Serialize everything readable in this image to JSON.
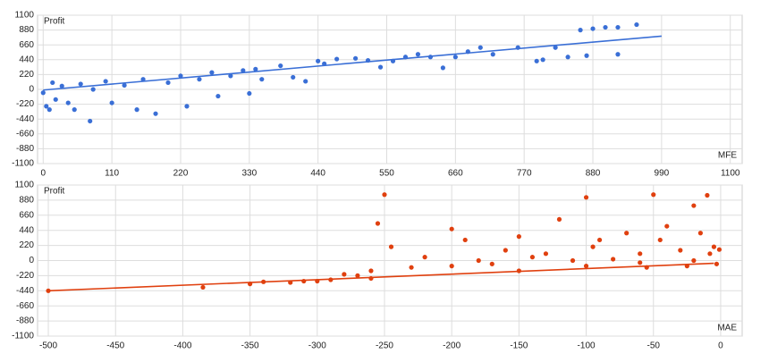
{
  "chart_data": [
    {
      "type": "scatter",
      "y_label": "Profit",
      "x_label": "MFE",
      "grid": true,
      "xlim": [
        -9,
        1119
      ],
      "ylim": [
        -1100,
        1100
      ],
      "xticks": [
        0,
        110,
        220,
        330,
        440,
        550,
        660,
        770,
        880,
        990,
        1100
      ],
      "yticks": [
        -1100,
        -880,
        -660,
        -440,
        -220,
        0,
        220,
        440,
        660,
        880,
        1100
      ],
      "series": [
        {
          "color": "#3a6fd6",
          "x": [
            0,
            5,
            10,
            15,
            20,
            30,
            40,
            50,
            60,
            75,
            80,
            100,
            110,
            130,
            150,
            160,
            180,
            200,
            220,
            230,
            250,
            270,
            280,
            300,
            320,
            330,
            340,
            350,
            380,
            400,
            420,
            440,
            450,
            470,
            500,
            520,
            540,
            560,
            580,
            600,
            620,
            640,
            660,
            680,
            700,
            720,
            760,
            790,
            800,
            820,
            840,
            860,
            880,
            900,
            920,
            950,
            870,
            920
          ],
          "y": [
            -50,
            -250,
            -300,
            100,
            -150,
            50,
            -200,
            -300,
            80,
            -470,
            0,
            120,
            -200,
            60,
            -300,
            150,
            -360,
            100,
            200,
            -250,
            150,
            250,
            -100,
            200,
            280,
            -60,
            300,
            150,
            350,
            180,
            120,
            420,
            380,
            450,
            460,
            430,
            330,
            420,
            480,
            520,
            480,
            320,
            480,
            560,
            620,
            520,
            620,
            420,
            440,
            620,
            480,
            880,
            900,
            920,
            920,
            960,
            500,
            520
          ]
        }
      ],
      "trendline": {
        "x": [
          0,
          990
        ],
        "y": [
          -10,
          790
        ]
      }
    },
    {
      "type": "scatter",
      "y_label": "Profit",
      "x_label": "MAE",
      "grid": true,
      "xlim": [
        -508,
        16
      ],
      "ylim": [
        -1100,
        1100
      ],
      "xticks": [
        -500,
        -450,
        -400,
        -350,
        -300,
        -250,
        -200,
        -150,
        -100,
        -50,
        0
      ],
      "yticks": [
        -1100,
        -880,
        -660,
        -440,
        -220,
        0,
        220,
        440,
        660,
        880,
        1100
      ],
      "series": [
        {
          "color": "#e0400f",
          "x": [
            -500,
            -385,
            -350,
            -340,
            -320,
            -300,
            -290,
            -280,
            -270,
            -260,
            -255,
            -250,
            -245,
            -230,
            -220,
            -200,
            -200,
            -190,
            -180,
            -170,
            -160,
            -150,
            -140,
            -130,
            -120,
            -110,
            -100,
            -95,
            -90,
            -80,
            -70,
            -60,
            -55,
            -50,
            -45,
            -40,
            -30,
            -25,
            -20,
            -15,
            -10,
            -8,
            -5,
            -3,
            -1,
            -310,
            -260,
            -150,
            -100,
            -60,
            -20
          ],
          "y": [
            -440,
            -390,
            -340,
            -310,
            -320,
            -300,
            -280,
            -200,
            -220,
            -150,
            540,
            960,
            200,
            -100,
            50,
            -80,
            460,
            300,
            0,
            -50,
            150,
            350,
            50,
            100,
            600,
            0,
            920,
            200,
            300,
            20,
            400,
            100,
            -100,
            960,
            300,
            500,
            150,
            -80,
            800,
            400,
            950,
            100,
            200,
            -50,
            160,
            -300,
            -260,
            -150,
            -80,
            -30,
            0
          ]
        }
      ],
      "trendline": {
        "x": [
          -500,
          -5
        ],
        "y": [
          -440,
          -40
        ]
      }
    }
  ]
}
